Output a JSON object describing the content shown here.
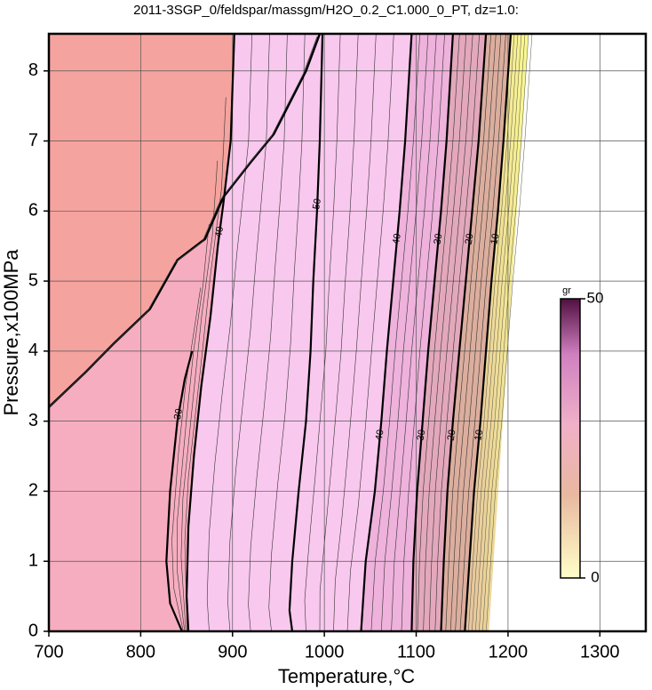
{
  "chart_data": {
    "type": "contour",
    "title": "2011-3SGP_0/feldspar/massgm/H2O_0.2_C1.000_0_PT, dz=1.0:",
    "x_label": "Temperature,°C",
    "y_label": "Pressure,x100MPa",
    "xlim": [
      700,
      1350
    ],
    "ylim": [
      0,
      8.53
    ],
    "xticks": [
      700,
      800,
      900,
      1000,
      1100,
      1200,
      1300
    ],
    "yticks": [
      0,
      1,
      2,
      3,
      4,
      5,
      6,
      7,
      8
    ],
    "grid": true,
    "contours": [
      {
        "level": 30,
        "x": [
          845,
          832,
          828,
          832,
          840,
          848,
          856
        ],
        "y": [
          0,
          0.4,
          1,
          2,
          3,
          3.6,
          4
        ]
      },
      {
        "level": 40,
        "x": [
          852,
          850,
          852,
          858,
          866,
          876,
          884,
          890,
          898,
          902
        ],
        "y": [
          0,
          0.5,
          1.5,
          2.5,
          3.5,
          4.5,
          5.5,
          6.1,
          7,
          8.53
        ]
      },
      {
        "level": 50,
        "x": [
          965,
          962,
          965,
          972,
          980,
          985,
          988,
          992,
          995,
          998
        ],
        "y": [
          0,
          0.3,
          1,
          2,
          3,
          4,
          5,
          6,
          7,
          8.53
        ]
      },
      {
        "level": 40,
        "x": [
          1040,
          1045,
          1055,
          1062,
          1068,
          1075,
          1082,
          1088,
          1095
        ],
        "y": [
          0,
          1,
          2,
          3,
          4,
          5,
          6,
          7,
          8.53
        ]
      },
      {
        "level": 30,
        "x": [
          1095,
          1097,
          1101,
          1107,
          1113,
          1120,
          1127,
          1133,
          1140
        ],
        "y": [
          0,
          1,
          2,
          3,
          4,
          5,
          6,
          7,
          8.53
        ]
      },
      {
        "level": 20,
        "x": [
          1127,
          1130,
          1134,
          1140,
          1147,
          1154,
          1161,
          1168,
          1176
        ],
        "y": [
          0,
          1,
          2,
          3,
          4,
          5,
          6,
          7,
          8.53
        ]
      },
      {
        "level": 10,
        "x": [
          1153,
          1158,
          1163,
          1170,
          1176,
          1182,
          1189,
          1195,
          1203
        ],
        "y": [
          0,
          1,
          2,
          3,
          4,
          5,
          6,
          7,
          8.53
        ]
      }
    ],
    "colorbar": {
      "label": "gr",
      "lim": [
        0,
        50
      ],
      "ticks": [
        0,
        50
      ]
    }
  }
}
